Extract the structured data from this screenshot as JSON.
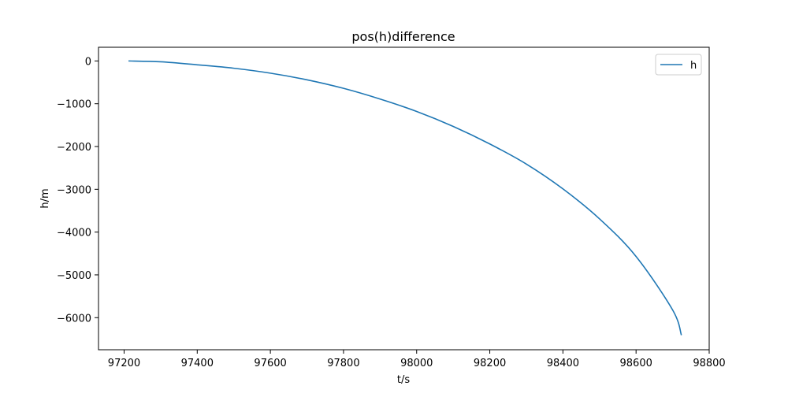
{
  "chart_data": {
    "type": "line",
    "title": "pos(h)difference",
    "xlabel": "t/s",
    "ylabel": "h/m",
    "xlim": [
      97130,
      98800
    ],
    "ylim": [
      -6750,
      320
    ],
    "x_ticks": [
      97200,
      97400,
      97600,
      97800,
      98000,
      98200,
      98400,
      98600,
      98800
    ],
    "x_tick_labels": [
      "97200",
      "97400",
      "97600",
      "97800",
      "98000",
      "98200",
      "98400",
      "98600",
      "98800"
    ],
    "y_ticks": [
      0,
      -1000,
      -2000,
      -3000,
      -4000,
      -5000,
      -6000
    ],
    "y_tick_labels": [
      "0",
      "−1000",
      "−2000",
      "−3000",
      "−4000",
      "−5000",
      "−6000"
    ],
    "grid": false,
    "legend_position": "top-right",
    "series": [
      {
        "name": "h",
        "color": "#1f77b4",
        "x": [
          97212,
          97300,
          97400,
          97500,
          97600,
          97700,
          97800,
          97900,
          98000,
          98100,
          98200,
          98300,
          98400,
          98500,
          98600,
          98700,
          98724
        ],
        "y": [
          0,
          -20,
          -90,
          -170,
          -285,
          -440,
          -640,
          -890,
          -1180,
          -1530,
          -1940,
          -2410,
          -2990,
          -3690,
          -4570,
          -5820,
          -6410
        ]
      }
    ]
  }
}
